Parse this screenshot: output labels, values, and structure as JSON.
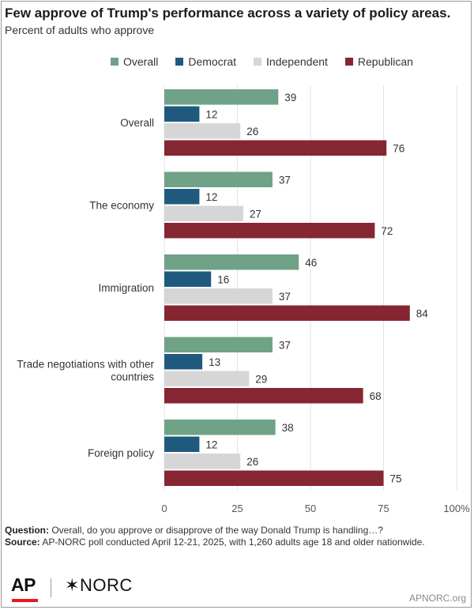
{
  "title": "Few approve of Trump's performance across a variety of policy areas.",
  "subtitle": "Percent of adults who approve",
  "legend": [
    {
      "label": "Overall",
      "color": "#6fa287"
    },
    {
      "label": "Democrat",
      "color": "#1f5a7e"
    },
    {
      "label": "Independent",
      "color": "#d6d6d6"
    },
    {
      "label": "Republican",
      "color": "#862633"
    }
  ],
  "chart_data": {
    "type": "bar",
    "orientation": "horizontal",
    "title": "Few approve of Trump's performance across a variety of policy areas.",
    "ylabel": "",
    "xlabel": "",
    "categories": [
      "Overall",
      "The economy",
      "Immigration",
      "Trade negotiations with other countries",
      "Foreign policy"
    ],
    "series": [
      {
        "name": "Overall",
        "values": [
          39,
          37,
          46,
          37,
          38
        ]
      },
      {
        "name": "Democrat",
        "values": [
          12,
          12,
          16,
          13,
          12
        ]
      },
      {
        "name": "Independent",
        "values": [
          26,
          27,
          37,
          29,
          26
        ]
      },
      {
        "name": "Republican",
        "values": [
          76,
          72,
          84,
          68,
          75
        ]
      }
    ],
    "xlim": [
      0,
      100
    ],
    "xticks": [
      "0",
      "25",
      "50",
      "75",
      "100%"
    ],
    "grid": true
  },
  "notes": {
    "question_label": "Question:",
    "question_text": "Overall, do you approve or disapprove of the way Donald Trump is handling…?",
    "source_label": "Source:",
    "source_text": "AP-NORC poll conducted April 12-21, 2025, with 1,260 adults age 18 and older nationwide."
  },
  "footer": {
    "logo_ap": "AP",
    "logo_norc": "NORC",
    "site": "APNORC.org"
  }
}
